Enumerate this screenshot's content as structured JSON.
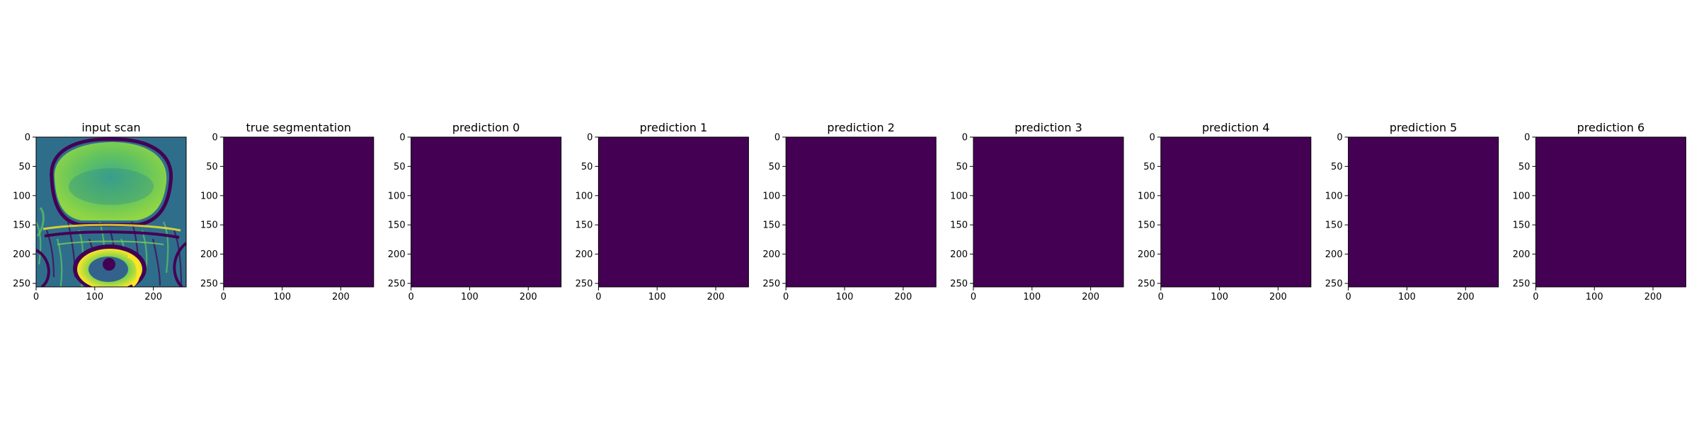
{
  "chart_data": {
    "type": "heatmap",
    "colormap": "viridis",
    "panels": [
      {
        "title": "input scan",
        "content": "grayscale MRI slice rendered in viridis",
        "xticks": [
          0,
          100,
          200
        ],
        "yticks": [
          0,
          50,
          100,
          150,
          200,
          250
        ],
        "xlim": [
          0,
          256
        ],
        "ylim": [
          256,
          0
        ]
      },
      {
        "title": "true segmentation",
        "fill_value": 0,
        "xticks": [
          0,
          100,
          200
        ],
        "yticks": [
          0,
          50,
          100,
          150,
          200,
          250
        ],
        "xlim": [
          0,
          256
        ],
        "ylim": [
          256,
          0
        ]
      },
      {
        "title": "prediction 0",
        "fill_value": 0,
        "xticks": [
          0,
          100,
          200
        ],
        "yticks": [
          0,
          50,
          100,
          150,
          200,
          250
        ],
        "xlim": [
          0,
          256
        ],
        "ylim": [
          256,
          0
        ]
      },
      {
        "title": "prediction 1",
        "fill_value": 0,
        "xticks": [
          0,
          100,
          200
        ],
        "yticks": [
          0,
          50,
          100,
          150,
          200,
          250
        ],
        "xlim": [
          0,
          256
        ],
        "ylim": [
          256,
          0
        ]
      },
      {
        "title": "prediction 2",
        "fill_value": 0,
        "xticks": [
          0,
          100,
          200
        ],
        "yticks": [
          0,
          50,
          100,
          150,
          200,
          250
        ],
        "xlim": [
          0,
          256
        ],
        "ylim": [
          256,
          0
        ]
      },
      {
        "title": "prediction 3",
        "fill_value": 0,
        "xticks": [
          0,
          100,
          200
        ],
        "yticks": [
          0,
          50,
          100,
          150,
          200,
          250
        ],
        "xlim": [
          0,
          256
        ],
        "ylim": [
          256,
          0
        ]
      },
      {
        "title": "prediction 4",
        "fill_value": 0,
        "xticks": [
          0,
          100,
          200
        ],
        "yticks": [
          0,
          50,
          100,
          150,
          200,
          250
        ],
        "xlim": [
          0,
          256
        ],
        "ylim": [
          256,
          0
        ]
      },
      {
        "title": "prediction 5",
        "fill_value": 0,
        "xticks": [
          0,
          100,
          200
        ],
        "yticks": [
          0,
          50,
          100,
          150,
          200,
          250
        ],
        "xlim": [
          0,
          256
        ],
        "ylim": [
          256,
          0
        ]
      },
      {
        "title": "prediction 6",
        "fill_value": 0,
        "xticks": [
          0,
          100,
          200
        ],
        "yticks": [
          0,
          50,
          100,
          150,
          200,
          250
        ],
        "xlim": [
          0,
          256
        ],
        "ylim": [
          256,
          0
        ]
      }
    ]
  },
  "colors": {
    "empty_mask": "#440154",
    "scan_dark": "#3b528b",
    "scan_mid": "#21918c",
    "scan_bright": "#5ec962",
    "scan_highlight": "#fde725"
  }
}
